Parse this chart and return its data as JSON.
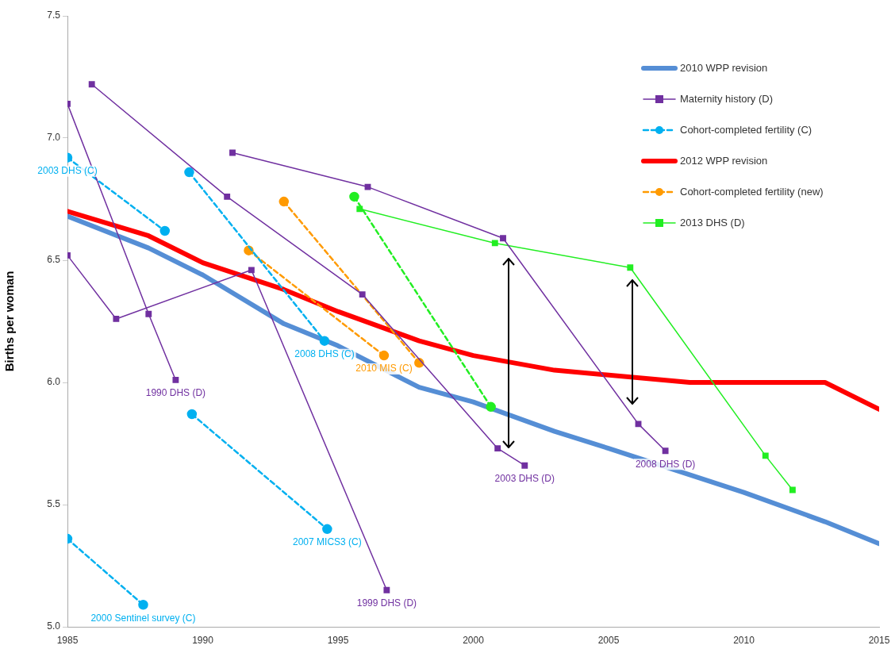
{
  "chart_data": {
    "type": "line",
    "ylabel": "Births per woman",
    "xlim": [
      1985,
      2015
    ],
    "xticks": [
      1985,
      1990,
      1995,
      2000,
      2005,
      2010,
      2015
    ],
    "ylim": [
      5,
      7.5
    ],
    "yticks": [
      {
        "value": 5,
        "label": "5.0"
      },
      {
        "value": 5.5,
        "label": "5.5"
      },
      {
        "value": 6,
        "label": "6.0"
      },
      {
        "value": 6.5,
        "label": "6.5"
      },
      {
        "value": 7,
        "label": "7.0"
      },
      {
        "value": 7.5,
        "label": "7.5"
      }
    ],
    "grid": false,
    "legend": "top right",
    "series": [
      {
        "name": "2010 WPP revision",
        "color": "#558ed5",
        "marker": "none",
        "line_style": "solid",
        "x": [
          1985,
          1988,
          1990,
          1993,
          1995,
          1998,
          2000,
          2003,
          2005,
          2010,
          2013,
          2015
        ],
        "values": [
          6.68,
          6.55,
          6.44,
          6.24,
          6.15,
          5.98,
          5.92,
          5.8,
          5.73,
          5.55,
          5.43,
          5.34
        ]
      },
      {
        "name": "Maternity history (D)",
        "color": "#7030a0",
        "marker": "square",
        "line_style": "solid",
        "x": [
          1985,
          1988,
          1989
        ],
        "values": [
          7.14,
          6.28,
          6.01
        ]
      },
      {
        "color": "#7030a0",
        "marker": "square",
        "line_style": "solid",
        "x": [
          1985,
          1986.8,
          1991.8,
          1996.8
        ],
        "values": [
          6.52,
          6.26,
          6.46,
          5.15
        ]
      },
      {
        "color": "#7030a0",
        "marker": "square",
        "line_style": "solid",
        "x": [
          1985.9,
          1990.9,
          1995.9,
          2000.9,
          2001.9
        ],
        "values": [
          7.22,
          6.76,
          6.36,
          5.73,
          5.66
        ]
      },
      {
        "color": "#7030a0",
        "marker": "square",
        "line_style": "solid",
        "x": [
          1991.1,
          1996.1,
          2001.1,
          2006.1,
          2007.1
        ],
        "values": [
          6.94,
          6.8,
          6.59,
          5.83,
          5.72
        ]
      },
      {
        "name": "Cohort-completed fertility (C)",
        "color": "#00b0f0",
        "marker": "circle",
        "line_style": "dashed",
        "x": [
          1985,
          1988.6
        ],
        "values": [
          6.92,
          6.62
        ]
      },
      {
        "color": "#00b0f0",
        "marker": "circle",
        "line_style": "dashed",
        "x": [
          1989.5,
          1994.5
        ],
        "values": [
          6.86,
          6.17
        ]
      },
      {
        "color": "#00b0f0",
        "marker": "circle",
        "line_style": "dashed",
        "x": [
          1989.6,
          1994.6
        ],
        "values": [
          5.87,
          5.4
        ]
      },
      {
        "color": "#00b0f0",
        "marker": "circle",
        "line_style": "dashed",
        "x": [
          1985,
          1987.8
        ],
        "values": [
          5.36,
          5.09
        ]
      },
      {
        "name": "2012 WPP revision",
        "color": "#ff0000",
        "marker": "none",
        "line_style": "solid",
        "x": [
          1985,
          1988,
          1990,
          1993,
          1995,
          1998,
          2000,
          2003,
          2008,
          2013,
          2015
        ],
        "values": [
          6.7,
          6.6,
          6.49,
          6.38,
          6.29,
          6.17,
          6.11,
          6.05,
          6,
          6,
          5.89
        ]
      },
      {
        "name": "Cohort-completed fertility (new)",
        "color": "#ff9a00",
        "marker": "circle",
        "line_style": "dashed",
        "x": [
          1991.7,
          1996.7
        ],
        "values": [
          6.54,
          6.11
        ]
      },
      {
        "color": "#ff9a00",
        "marker": "circle",
        "line_style": "dashed",
        "x": [
          1993,
          1998
        ],
        "values": [
          6.74,
          6.08
        ]
      },
      {
        "name": "2013 DHS (D)",
        "color": "#22ee22",
        "marker": "square",
        "line_style": "solid",
        "x": [
          1995.8,
          2000.8,
          2005.8,
          2010.8,
          2011.8
        ],
        "values": [
          6.71,
          6.57,
          6.47,
          5.7,
          5.56
        ]
      },
      {
        "color": "#22ee22",
        "marker": "circle",
        "line_style": "dashed",
        "x": [
          1995.6,
          2000.65
        ],
        "values": [
          6.76,
          5.9
        ]
      }
    ],
    "annotations": [
      {
        "text": "2003 DHS (C)",
        "x": 1985,
        "y": 6.92
      },
      {
        "text": "1990 DHS (D)",
        "x": 1989,
        "y": 6.01
      },
      {
        "text": "2010 MIS (C)",
        "x": 1996.7,
        "y": 6.11
      },
      {
        "text": "2008 DHS (C)",
        "x": 1994.5,
        "y": 6.17
      },
      {
        "text": "2007 MICS3 (C)",
        "x": 1994.6,
        "y": 5.4
      },
      {
        "text": "2000 Sentinel survey (C)",
        "x": 1987.8,
        "y": 5.09
      },
      {
        "text": "1999 DHS (D)",
        "x": 1996.8,
        "y": 5.15
      },
      {
        "text": "2003 DHS (D)",
        "x": 2001.9,
        "y": 5.66
      },
      {
        "text": "2008 DHS (D)",
        "x": 2007.1,
        "y": 5.72
      }
    ]
  }
}
